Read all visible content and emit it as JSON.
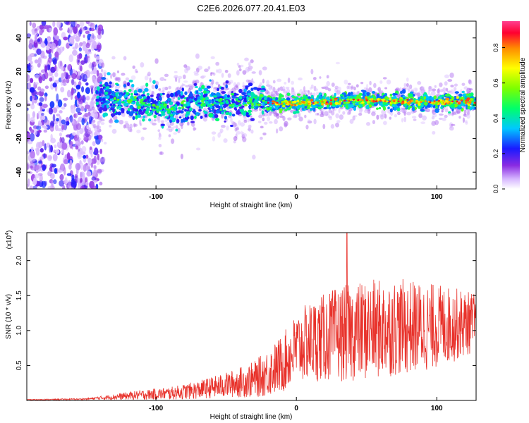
{
  "title": "C2E6.2026.077.20.41.E03",
  "chart_data": [
    {
      "type": "heatmap",
      "xlabel": "Height of straight line (km)",
      "ylabel": "Frequency (Hz)",
      "xlim": [
        -192,
        128
      ],
      "ylim": [
        -50,
        50
      ],
      "xticks": [
        -100,
        0,
        100
      ],
      "yticks": [
        -40,
        -20,
        0,
        20,
        40
      ],
      "colorbar": {
        "label": "Normalized spectral amplitude",
        "range": [
          0.0,
          0.95
        ],
        "ticks": [
          0.0,
          0.2,
          0.4,
          0.6,
          0.8
        ],
        "tick_labels": [
          "0.0",
          "0.2",
          "0.4",
          "0.6",
          "0.8"
        ]
      },
      "features": {
        "noise_region_x": [
          -192,
          -138
        ],
        "band_center_hz": [
          {
            "x": -135,
            "y": 4
          },
          {
            "x": -110,
            "y": 1
          },
          {
            "x": -90,
            "y": -2
          },
          {
            "x": -70,
            "y": 3
          },
          {
            "x": -50,
            "y": 1
          },
          {
            "x": -30,
            "y": 2
          },
          {
            "x": -10,
            "y": 1
          },
          {
            "x": 10,
            "y": 1
          },
          {
            "x": 40,
            "y": 3
          },
          {
            "x": 80,
            "y": 2
          },
          {
            "x": 128,
            "y": 2
          }
        ],
        "peak_amplitude": 0.95
      }
    },
    {
      "type": "line",
      "xlabel": "Height of straight line (km)",
      "ylabel": "SNR (10 * v/v)",
      "multiplier_label": "(x10",
      "multiplier_exp": "4",
      "multiplier_close": ")",
      "xlim": [
        -192,
        128
      ],
      "ylim": [
        0,
        2.4
      ],
      "xticks": [
        -100,
        0,
        100
      ],
      "yticks": [
        0.5,
        1.0,
        1.5,
        2.0
      ],
      "ytick_labels": [
        "0.5",
        "1.0",
        "1.5",
        "2.0"
      ],
      "color": "#e8322b",
      "envelope": {
        "x": [
          -192,
          -150,
          -130,
          -110,
          -90,
          -70,
          -50,
          -30,
          -20,
          -10,
          0,
          10,
          30,
          50,
          70,
          90,
          110,
          128
        ],
        "mean": [
          0.01,
          0.02,
          0.05,
          0.08,
          0.1,
          0.15,
          0.22,
          0.3,
          0.4,
          0.52,
          0.75,
          0.85,
          0.95,
          1.0,
          1.05,
          1.05,
          1.08,
          1.12
        ],
        "amp": [
          0.005,
          0.01,
          0.04,
          0.07,
          0.09,
          0.13,
          0.18,
          0.26,
          0.34,
          0.42,
          0.5,
          0.58,
          0.68,
          0.72,
          0.7,
          0.65,
          0.55,
          0.42
        ]
      },
      "peak": {
        "x": 36,
        "y": 2.42
      }
    }
  ]
}
